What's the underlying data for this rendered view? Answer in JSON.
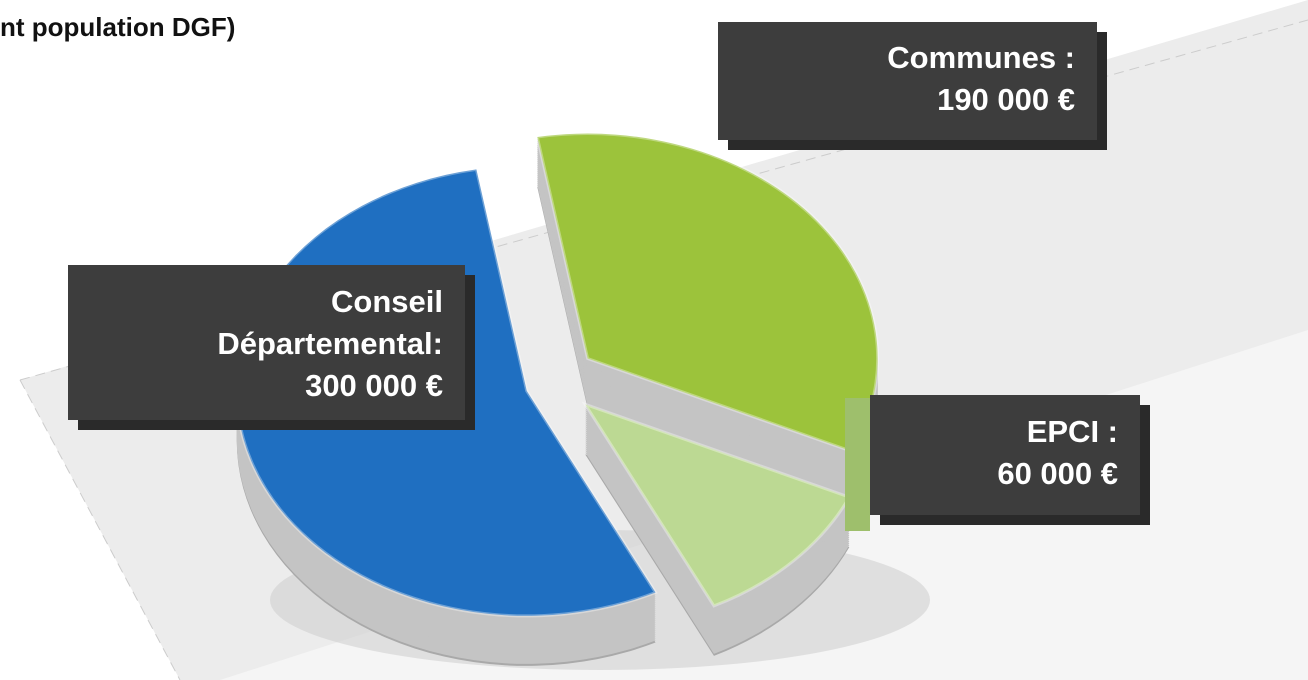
{
  "chart_data": {
    "type": "pie",
    "title": "nt population DGF)",
    "categories": [
      "Conseil Départemental:",
      "Communes :",
      "EPCI :"
    ],
    "values": [
      300000,
      190000,
      60000
    ],
    "value_labels": [
      "300 000 €",
      "190 000 €",
      "60 000 €"
    ],
    "colors": [
      "#1f6fc1",
      "#9cc33b",
      "#bcd993"
    ]
  }
}
